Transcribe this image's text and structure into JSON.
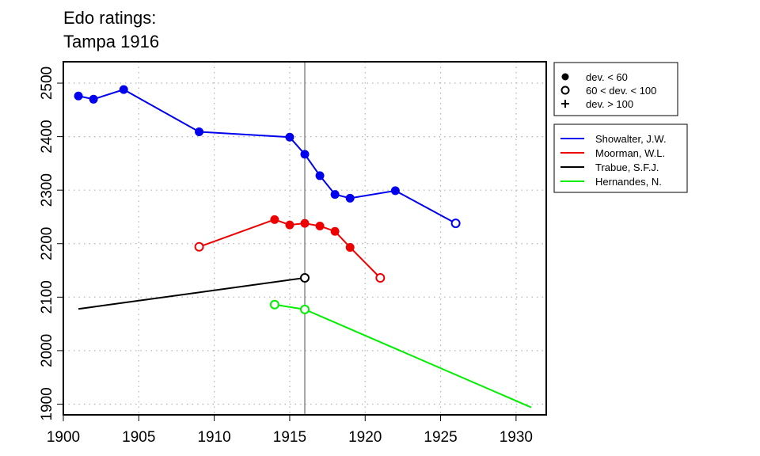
{
  "chart_data": {
    "type": "line",
    "title": "Edo ratings:",
    "subtitle": "Tampa 1916",
    "xlabel": "",
    "ylabel": "",
    "xlim": [
      1900,
      1932
    ],
    "ylim": [
      1880,
      2540
    ],
    "x_ticks": [
      1900,
      1905,
      1910,
      1915,
      1920,
      1925,
      1930
    ],
    "y_ticks": [
      1900,
      2000,
      2100,
      2200,
      2300,
      2400,
      2500
    ],
    "grid": true,
    "vline": 1916,
    "marker_legend": {
      "placement": "top-right",
      "items": [
        {
          "marker": "filled-circle",
          "label": "dev. < 60"
        },
        {
          "marker": "open-circle",
          "label": "60 < dev. < 100"
        },
        {
          "marker": "plus",
          "label": "dev. > 100"
        }
      ]
    },
    "series": [
      {
        "name": "Showalter, J.W.",
        "color": "#0000ee",
        "points": [
          {
            "x": 1901,
            "y": 2476,
            "m": "filled"
          },
          {
            "x": 1902,
            "y": 2470,
            "m": "filled"
          },
          {
            "x": 1904,
            "y": 2488,
            "m": "filled"
          },
          {
            "x": 1909,
            "y": 2409,
            "m": "filled"
          },
          {
            "x": 1915,
            "y": 2399,
            "m": "filled"
          },
          {
            "x": 1916,
            "y": 2367,
            "m": "filled"
          },
          {
            "x": 1917,
            "y": 2327,
            "m": "filled"
          },
          {
            "x": 1918,
            "y": 2292,
            "m": "filled"
          },
          {
            "x": 1919,
            "y": 2285,
            "m": "filled"
          },
          {
            "x": 1922,
            "y": 2299,
            "m": "filled"
          },
          {
            "x": 1926,
            "y": 2238,
            "m": "open"
          }
        ]
      },
      {
        "name": "Moorman, W.L.",
        "color": "#ee0000",
        "points": [
          {
            "x": 1909,
            "y": 2194,
            "m": "open"
          },
          {
            "x": 1914,
            "y": 2245,
            "m": "filled"
          },
          {
            "x": 1915,
            "y": 2235,
            "m": "filled"
          },
          {
            "x": 1916,
            "y": 2238,
            "m": "filled"
          },
          {
            "x": 1917,
            "y": 2233,
            "m": "filled"
          },
          {
            "x": 1918,
            "y": 2223,
            "m": "filled"
          },
          {
            "x": 1919,
            "y": 2193,
            "m": "filled"
          },
          {
            "x": 1921,
            "y": 2136,
            "m": "open"
          }
        ]
      },
      {
        "name": "Trabue, S.F.J.",
        "color": "#000000",
        "points": [
          {
            "x": 1901,
            "y": 2078,
            "m": "none"
          },
          {
            "x": 1916,
            "y": 2136,
            "m": "open"
          }
        ]
      },
      {
        "name": "Hernandes, N.",
        "color": "#00ee00",
        "points": [
          {
            "x": 1914,
            "y": 2086,
            "m": "open"
          },
          {
            "x": 1916,
            "y": 2077,
            "m": "open"
          },
          {
            "x": 1931,
            "y": 1894,
            "m": "none"
          }
        ]
      }
    ]
  }
}
